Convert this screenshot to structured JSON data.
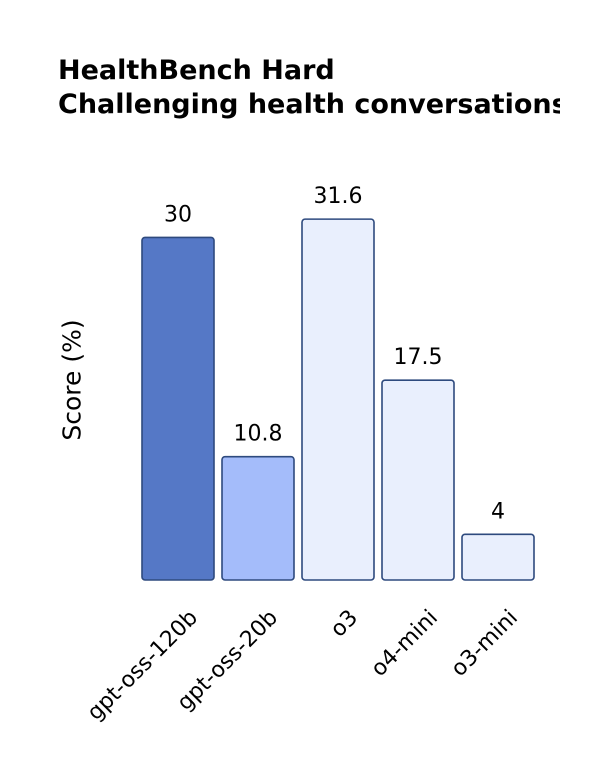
{
  "chart_data": {
    "type": "bar",
    "title": "HealthBench Hard",
    "subtitle": "Challenging health conversations",
    "ylabel": "Score (%)",
    "xlabel": "",
    "ylim": [
      0,
      32
    ],
    "categories": [
      "gpt-oss-120b",
      "gpt-oss-20b",
      "o3",
      "o4-mini",
      "o3-mini"
    ],
    "values": [
      30,
      10.8,
      31.6,
      17.5,
      4
    ],
    "value_labels": [
      "30",
      "10.8",
      "31.6",
      "17.5",
      "4"
    ],
    "bar_colors": [
      "#5578c6",
      "#a4bcfa",
      "#e9effd",
      "#e9effd",
      "#e9effd"
    ],
    "edge_color": "#2e4a7e",
    "grid": false,
    "legend": "none"
  }
}
